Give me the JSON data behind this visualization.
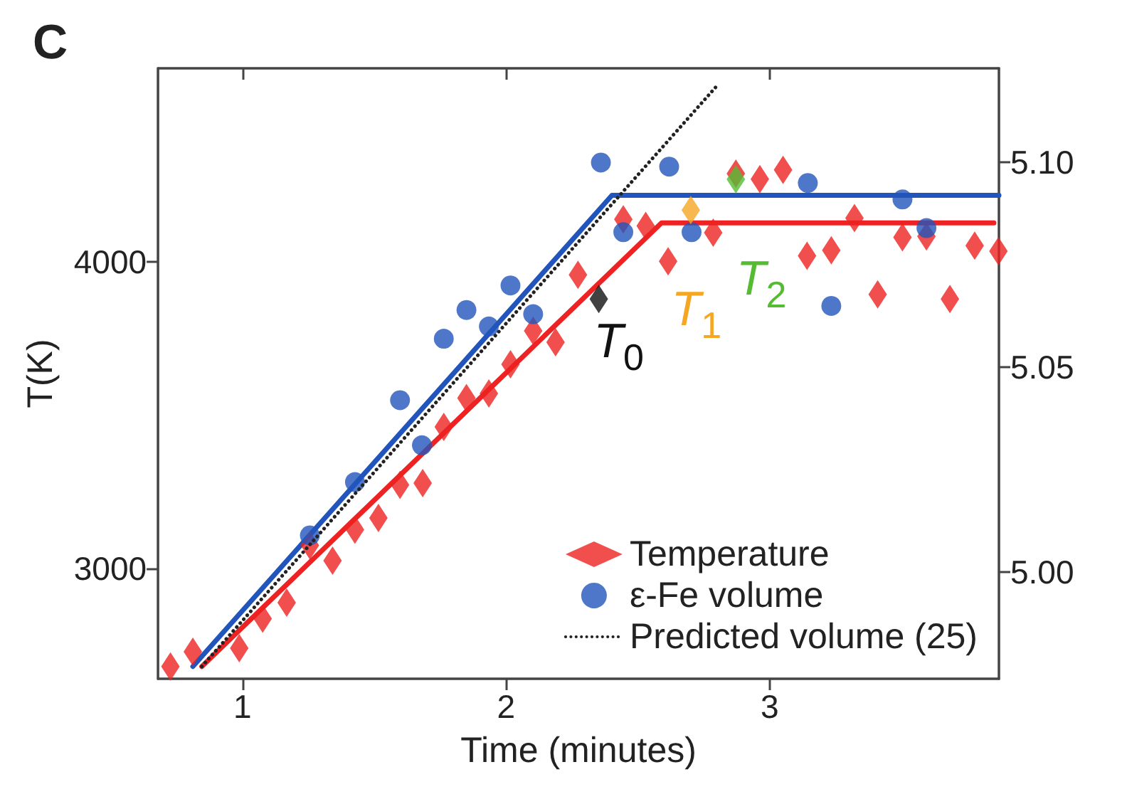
{
  "chart_data": {
    "type": "scatter",
    "title": "C",
    "xlabel": "Time (minutes)",
    "ylabel": "T(K)",
    "xlim": [
      0.68,
      3.87
    ],
    "xticks": [
      1,
      2,
      3
    ],
    "ylim": [
      2640,
      4630
    ],
    "yticks": [
      3000,
      4000
    ],
    "y2lim": [
      4.974,
      5.123
    ],
    "y2ticks": [
      {
        "value": 5.0,
        "label": "5.00"
      },
      {
        "value": 5.05,
        "label": "5.05"
      },
      {
        "value": 5.1,
        "label": "5.10"
      }
    ],
    "grid": false,
    "legend": "bottom right",
    "series": [
      {
        "name": "Temperature",
        "marker": "diamond",
        "color": "#ee2222",
        "x": [
          0.727,
          0.812,
          0.988,
          1.077,
          1.168,
          1.256,
          1.342,
          1.427,
          1.516,
          1.598,
          1.684,
          1.764,
          1.85,
          1.935,
          2.017,
          2.103,
          2.188,
          2.273,
          2.445,
          2.53,
          2.615,
          2.786,
          2.872,
          2.963,
          3.051,
          3.142,
          3.234,
          3.322,
          3.41,
          3.504,
          3.595,
          3.684,
          3.778,
          3.868
        ],
        "values": [
          2680,
          2728,
          2740,
          2836,
          2888,
          3075,
          3025,
          3126,
          3164,
          3272,
          3278,
          3461,
          3555,
          3570,
          3665,
          3774,
          3737,
          3957,
          4138,
          4116,
          4001,
          4094,
          4287,
          4269,
          4299,
          4019,
          4037,
          4142,
          3893,
          4079,
          4082,
          3878,
          4052,
          4034
        ]
      },
      {
        "name": "ε-Fe volume",
        "marker": "circle",
        "axis": "y2",
        "color": "#2255bb",
        "x": [
          1.256,
          1.427,
          1.598,
          1.681,
          1.764,
          1.85,
          1.935,
          2.017,
          2.103,
          2.36,
          2.445,
          2.619,
          2.704,
          3.145,
          3.234,
          3.504,
          3.595
        ],
        "values": [
          5.009,
          5.022,
          5.042,
          5.031,
          5.057,
          5.064,
          5.06,
          5.07,
          5.063,
          5.1,
          5.083,
          5.099,
          5.083,
          5.095,
          5.065,
          5.091,
          5.084
        ]
      },
      {
        "name": "Predicted volume (25)",
        "type": "line",
        "marker": "none",
        "line_style": "dotted",
        "axis": "y2",
        "color": "#222222",
        "x": [
          0.846,
          2.804
        ],
        "values": [
          4.977,
          5.119
        ]
      },
      {
        "type": "line",
        "marker": "none",
        "line_style": "solid",
        "color": "#ee2222",
        "x": [
          0.846,
          2.59,
          3.851
        ],
        "values": [
          2680,
          4126,
          4126
        ]
      },
      {
        "type": "line",
        "marker": "none",
        "line_style": "solid",
        "axis": "y2",
        "color": "#2255bb",
        "x": [
          0.812,
          2.402,
          3.87
        ],
        "values": [
          4.977,
          5.092,
          5.092
        ]
      },
      {
        "marker": "diamond",
        "color": "#111111",
        "x": [
          2.352
        ],
        "values": [
          3878
        ]
      },
      {
        "marker": "diamond",
        "color": "#f5a623",
        "x": [
          2.701
        ],
        "values": [
          4168
        ]
      },
      {
        "marker": "diamond",
        "color": "#55bb33",
        "x": [
          2.872
        ],
        "values": [
          4268
        ]
      }
    ],
    "annotations": [
      {
        "text": "T$_{0}$",
        "x": 2.352,
        "y": 3878
      },
      {
        "text": "T$_{1}$",
        "x": 2.701,
        "y": 4168
      },
      {
        "text": "T$_{2}$",
        "x": 2.872,
        "y": 4268
      }
    ]
  }
}
